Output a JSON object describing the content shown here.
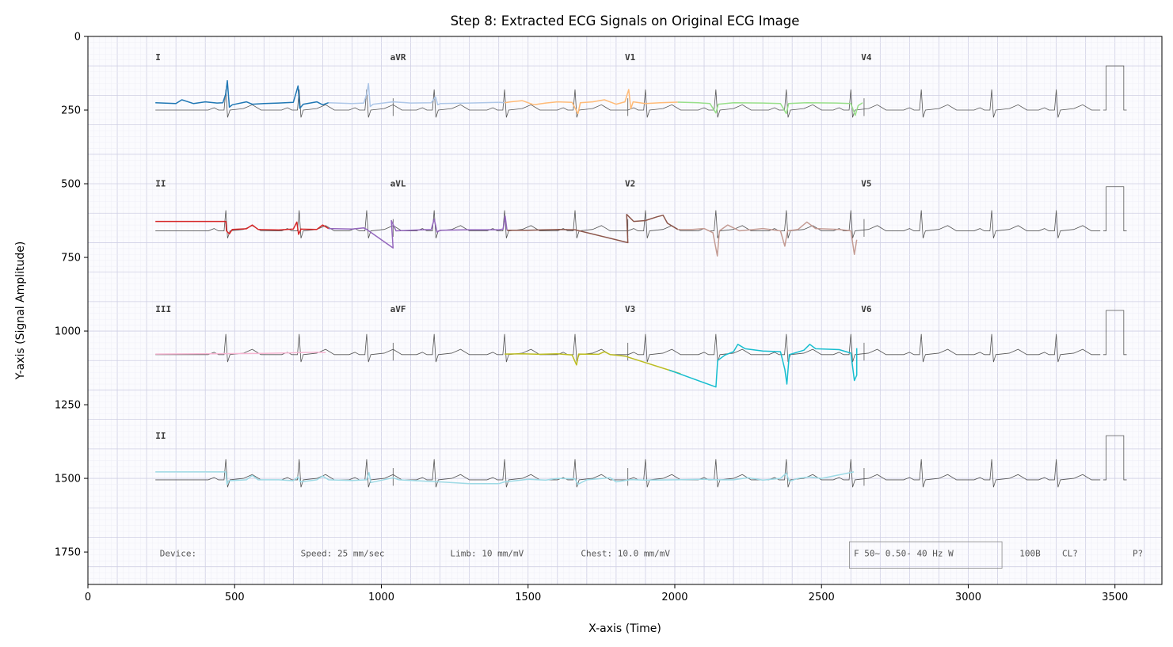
{
  "chart_data": {
    "type": "line",
    "title": "Step 8: Extracted ECG Signals on Original ECG Image",
    "xlabel": "X-axis (Time)",
    "ylabel": "Y-axis (Signal Amplitude)",
    "xlim": [
      0,
      3660
    ],
    "ylim": [
      1860,
      0
    ],
    "y_inverted": true,
    "x_ticks": [
      0,
      500,
      1000,
      1500,
      2000,
      2500,
      3000,
      3500
    ],
    "y_ticks": [
      0,
      250,
      500,
      750,
      1000,
      1250,
      1500,
      1750
    ],
    "grid": "ECG paper grid background",
    "background_ecg": {
      "lead_labels": [
        {
          "text": "I",
          "x": 230,
          "y": 80
        },
        {
          "text": "aVR",
          "x": 1030,
          "y": 80
        },
        {
          "text": "V1",
          "x": 1830,
          "y": 80
        },
        {
          "text": "V4",
          "x": 2635,
          "y": 80
        },
        {
          "text": "II",
          "x": 230,
          "y": 510
        },
        {
          "text": "aVL",
          "x": 1030,
          "y": 510
        },
        {
          "text": "V2",
          "x": 1830,
          "y": 510
        },
        {
          "text": "V5",
          "x": 2635,
          "y": 510
        },
        {
          "text": "III",
          "x": 230,
          "y": 935
        },
        {
          "text": "aVF",
          "x": 1030,
          "y": 935
        },
        {
          "text": "V3",
          "x": 1830,
          "y": 935
        },
        {
          "text": "V6",
          "x": 2635,
          "y": 935
        },
        {
          "text": "II",
          "x": 230,
          "y": 1365
        }
      ],
      "footer": {
        "device": "Device:",
        "speed": "Speed: 25 mm/sec",
        "limb": "Limb: 10 mm/mV",
        "chest": "Chest: 10.0 mm/mV",
        "filter": "F 50~ 0.50- 40 Hz W",
        "model": "100B",
        "cl": "CL?",
        "p": "P?"
      },
      "strips": [
        {
          "baseline": 250,
          "x_start": 230,
          "x_end": 3450,
          "beats": [
            470,
            720,
            950,
            1180,
            1420,
            1660,
            1900,
            2140,
            2380,
            2600,
            2840,
            3080,
            3300
          ],
          "calibration_x": 3470
        },
        {
          "baseline": 660,
          "x_start": 230,
          "x_end": 3450,
          "beats": [
            470,
            720,
            950,
            1180,
            1420,
            1660,
            1900,
            2140,
            2380,
            2600,
            2840,
            3080,
            3300
          ],
          "calibration_x": 3470
        },
        {
          "baseline": 1080,
          "x_start": 230,
          "x_end": 3450,
          "beats": [
            470,
            720,
            950,
            1180,
            1420,
            1660,
            1900,
            2140,
            2380,
            2600,
            2840,
            3080,
            3300
          ],
          "calibration_x": 3470
        },
        {
          "baseline": 1505,
          "x_start": 230,
          "x_end": 3450,
          "beats": [
            470,
            720,
            950,
            1180,
            1420,
            1660,
            1900,
            2140,
            2380,
            2600,
            2840,
            3080,
            3300
          ],
          "calibration_x": 3470
        }
      ],
      "separators_x": [
        1040,
        1840,
        2645
      ]
    },
    "series": [
      {
        "color": "#1f77b4",
        "points": [
          [
            230,
            225
          ],
          [
            300,
            228
          ],
          [
            320,
            215
          ],
          [
            360,
            228
          ],
          [
            400,
            222
          ],
          [
            440,
            226
          ],
          [
            460,
            225
          ],
          [
            470,
            195
          ],
          [
            475,
            150
          ],
          [
            482,
            240
          ],
          [
            492,
            232
          ],
          [
            540,
            222
          ],
          [
            560,
            230
          ],
          [
            600,
            228
          ],
          [
            650,
            226
          ],
          [
            700,
            224
          ],
          [
            710,
            190
          ],
          [
            716,
            168
          ],
          [
            722,
            244
          ],
          [
            734,
            230
          ],
          [
            780,
            222
          ],
          [
            800,
            232
          ],
          [
            820,
            225
          ]
        ]
      },
      {
        "color": "#aec7e8",
        "points": [
          [
            820,
            225
          ],
          [
            900,
            228
          ],
          [
            940,
            226
          ],
          [
            950,
            195
          ],
          [
            956,
            160
          ],
          [
            962,
            238
          ],
          [
            972,
            230
          ],
          [
            1040,
            222
          ],
          [
            1100,
            226
          ],
          [
            1170,
            225
          ],
          [
            1185,
            205
          ],
          [
            1192,
            232
          ],
          [
            1200,
            228
          ],
          [
            1300,
            226
          ],
          [
            1400,
            224
          ],
          [
            1420,
            225
          ]
        ]
      },
      {
        "color": "#ffbb78",
        "points": [
          [
            1420,
            225
          ],
          [
            1440,
            222
          ],
          [
            1480,
            218
          ],
          [
            1520,
            232
          ],
          [
            1560,
            226
          ],
          [
            1600,
            222
          ],
          [
            1650,
            224
          ],
          [
            1670,
            262
          ],
          [
            1678,
            225
          ],
          [
            1720,
            222
          ],
          [
            1760,
            215
          ],
          [
            1800,
            230
          ],
          [
            1830,
            222
          ],
          [
            1843,
            180
          ],
          [
            1850,
            245
          ],
          [
            1858,
            222
          ],
          [
            1900,
            228
          ],
          [
            1950,
            225
          ],
          [
            2010,
            223
          ]
        ]
      },
      {
        "color": "#98df8a",
        "points": [
          [
            2010,
            223
          ],
          [
            2080,
            225
          ],
          [
            2120,
            228
          ],
          [
            2140,
            260
          ],
          [
            2148,
            230
          ],
          [
            2200,
            225
          ],
          [
            2300,
            226
          ],
          [
            2360,
            228
          ],
          [
            2380,
            262
          ],
          [
            2388,
            228
          ],
          [
            2450,
            225
          ],
          [
            2550,
            226
          ],
          [
            2600,
            228
          ],
          [
            2615,
            268
          ],
          [
            2625,
            235
          ],
          [
            2640,
            225
          ]
        ]
      },
      {
        "color": "#d62728",
        "points": [
          [
            230,
            628
          ],
          [
            470,
            628
          ],
          [
            472,
            660
          ],
          [
            482,
            670
          ],
          [
            492,
            655
          ],
          [
            540,
            653
          ],
          [
            560,
            640
          ],
          [
            580,
            655
          ],
          [
            650,
            657
          ],
          [
            700,
            654
          ],
          [
            712,
            630
          ],
          [
            718,
            672
          ],
          [
            726,
            654
          ],
          [
            780,
            655
          ],
          [
            800,
            640
          ],
          [
            820,
            652
          ]
        ]
      },
      {
        "color": "#9467bd",
        "points": [
          [
            820,
            652
          ],
          [
            900,
            654
          ],
          [
            940,
            650
          ],
          [
            950,
            655
          ],
          [
            1040,
            718
          ],
          [
            1034,
            625
          ],
          [
            1050,
            660
          ],
          [
            1100,
            658
          ],
          [
            1170,
            655
          ],
          [
            1180,
            620
          ],
          [
            1190,
            664
          ],
          [
            1200,
            658
          ],
          [
            1300,
            656
          ],
          [
            1400,
            656
          ],
          [
            1415,
            654
          ],
          [
            1422,
            610
          ],
          [
            1428,
            658
          ]
        ]
      },
      {
        "color": "#8c564b",
        "points": [
          [
            1428,
            658
          ],
          [
            1500,
            658
          ],
          [
            1600,
            655
          ],
          [
            1660,
            656
          ],
          [
            1840,
            700
          ],
          [
            1836,
            604
          ],
          [
            1860,
            628
          ],
          [
            1900,
            625
          ],
          [
            1940,
            612
          ],
          [
            1960,
            607
          ],
          [
            1975,
            634
          ],
          [
            2010,
            655
          ]
        ]
      },
      {
        "color": "#c49c94",
        "points": [
          [
            2010,
            655
          ],
          [
            2060,
            655
          ],
          [
            2100,
            652
          ],
          [
            2130,
            666
          ],
          [
            2145,
            745
          ],
          [
            2152,
            660
          ],
          [
            2180,
            640
          ],
          [
            2220,
            660
          ],
          [
            2300,
            652
          ],
          [
            2360,
            660
          ],
          [
            2375,
            712
          ],
          [
            2384,
            660
          ],
          [
            2420,
            655
          ],
          [
            2450,
            630
          ],
          [
            2480,
            652
          ],
          [
            2560,
            655
          ],
          [
            2600,
            660
          ],
          [
            2612,
            740
          ],
          [
            2620,
            690
          ]
        ]
      },
      {
        "color": "#f7b6d2",
        "points": [
          [
            230,
            1078
          ],
          [
            400,
            1077
          ],
          [
            600,
            1076
          ],
          [
            780,
            1072
          ],
          [
            810,
            1073
          ]
        ]
      },
      {
        "color": "#bcbd22",
        "points": [
          [
            1420,
            1078
          ],
          [
            1480,
            1077
          ],
          [
            1540,
            1079
          ],
          [
            1600,
            1077
          ],
          [
            1650,
            1081
          ],
          [
            1665,
            1115
          ],
          [
            1672,
            1078
          ],
          [
            1740,
            1079
          ],
          [
            1760,
            1070
          ],
          [
            1780,
            1080
          ],
          [
            1830,
            1085
          ],
          [
            2020,
            1145
          ]
        ]
      },
      {
        "color": "#17becf",
        "points": [
          [
            1980,
            1132
          ],
          [
            2140,
            1190
          ],
          [
            2146,
            1100
          ],
          [
            2170,
            1082
          ],
          [
            2200,
            1070
          ],
          [
            2215,
            1045
          ],
          [
            2240,
            1060
          ],
          [
            2300,
            1068
          ],
          [
            2360,
            1070
          ],
          [
            2375,
            1130
          ],
          [
            2382,
            1180
          ],
          [
            2390,
            1080
          ],
          [
            2440,
            1065
          ],
          [
            2460,
            1045
          ],
          [
            2480,
            1060
          ],
          [
            2560,
            1063
          ],
          [
            2600,
            1075
          ],
          [
            2612,
            1168
          ],
          [
            2620,
            1150
          ],
          [
            2620,
            1058
          ]
        ]
      },
      {
        "color": "#9edae5",
        "points": [
          [
            230,
            1478
          ],
          [
            470,
            1478
          ],
          [
            474,
            1520
          ],
          [
            480,
            1508
          ],
          [
            540,
            1505
          ],
          [
            560,
            1490
          ],
          [
            580,
            1505
          ],
          [
            650,
            1505
          ],
          [
            700,
            1508
          ],
          [
            716,
            1495
          ],
          [
            724,
            1512
          ],
          [
            780,
            1505
          ],
          [
            800,
            1492
          ],
          [
            820,
            1505
          ],
          [
            900,
            1507
          ],
          [
            950,
            1505
          ],
          [
            958,
            1480
          ],
          [
            964,
            1514
          ],
          [
            1040,
            1498
          ],
          [
            1060,
            1505
          ],
          [
            1200,
            1512
          ],
          [
            1300,
            1518
          ],
          [
            1400,
            1518
          ],
          [
            1420,
            1512
          ],
          [
            1500,
            1503
          ],
          [
            1560,
            1506
          ],
          [
            1600,
            1500
          ],
          [
            1660,
            1502
          ],
          [
            1670,
            1520
          ],
          [
            1700,
            1505
          ],
          [
            1780,
            1498
          ],
          [
            1800,
            1512
          ],
          [
            1850,
            1504
          ],
          [
            1900,
            1506
          ],
          [
            2000,
            1505
          ],
          [
            2100,
            1503
          ],
          [
            2140,
            1505
          ],
          [
            2200,
            1505
          ],
          [
            2250,
            1498
          ],
          [
            2300,
            1506
          ],
          [
            2360,
            1500
          ],
          [
            2380,
            1482
          ],
          [
            2390,
            1510
          ],
          [
            2420,
            1500
          ],
          [
            2460,
            1495
          ],
          [
            2500,
            1500
          ],
          [
            2560,
            1488
          ],
          [
            2610,
            1478
          ]
        ]
      }
    ]
  }
}
